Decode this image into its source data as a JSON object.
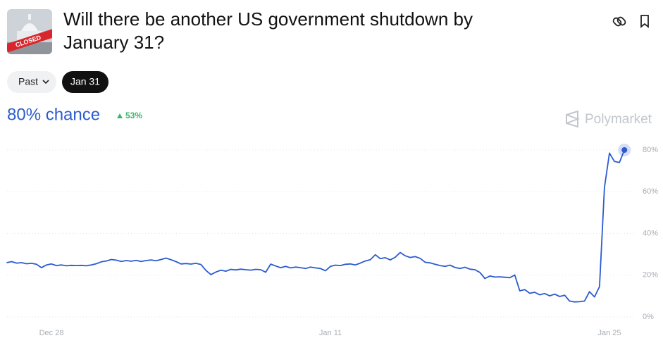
{
  "header": {
    "title_line1": "Will there be another US government shutdown by",
    "title_line2": "January 31?",
    "image_text": "CLOSED"
  },
  "filters": [
    "Past",
    "Jan 31"
  ],
  "summary": {
    "chance": "80% chance",
    "change": "53%",
    "brand": "Polymarket"
  },
  "chart_data": {
    "type": "line",
    "color": "#2b5bd0",
    "grid": true,
    "categories": [
      null,
      null,
      null,
      null,
      null,
      null,
      null,
      null,
      null,
      "Dec 28",
      null,
      null,
      null,
      null,
      null,
      null,
      null,
      null,
      null,
      null,
      null,
      null,
      null,
      null,
      null,
      null,
      null,
      null,
      null,
      null,
      null,
      null,
      null,
      null,
      null,
      null,
      null,
      null,
      null,
      null,
      null,
      null,
      null,
      null,
      null,
      null,
      null,
      null,
      null,
      null,
      null,
      null,
      null,
      null,
      null,
      null,
      null,
      null,
      null,
      null,
      null,
      null,
      null,
      null,
      null,
      "Jan 11",
      null,
      null,
      null,
      null,
      null,
      null,
      null,
      null,
      null,
      null,
      null,
      null,
      null,
      null,
      null,
      null,
      null,
      null,
      null,
      null,
      null,
      null,
      null,
      null,
      null,
      null,
      null,
      null,
      null,
      null,
      null,
      null,
      null,
      null,
      null,
      null,
      null,
      null,
      null,
      null,
      null,
      null,
      null,
      null,
      null,
      null,
      null,
      null,
      null,
      null,
      null,
      null,
      null,
      null,
      null,
      "Jan 25",
      null,
      null,
      null
    ],
    "values": [
      26,
      26.5,
      25.8,
      26,
      25.5,
      25.7,
      25.2,
      23.6,
      24.9,
      25.4,
      24.6,
      24.9,
      24.5,
      24.7,
      24.6,
      24.7,
      24.5,
      24.9,
      25.5,
      26.4,
      26.8,
      27.5,
      27.2,
      26.6,
      27,
      26.7,
      27.1,
      26.6,
      27,
      27.3,
      26.9,
      27.5,
      28.2,
      27.4,
      26.5,
      25.4,
      25.6,
      25.3,
      25.7,
      25.1,
      22.3,
      20.3,
      21.5,
      22.4,
      21.9,
      22.8,
      22.5,
      22.9,
      22.6,
      22.4,
      22.8,
      22.6,
      21.4,
      25.3,
      24.4,
      23.6,
      24.2,
      23.5,
      23.9,
      23.6,
      23.2,
      23.9,
      23.5,
      23.2,
      22.1,
      24.2,
      24.8,
      24.6,
      25.2,
      25.4,
      24.9,
      25.8,
      26.8,
      27.4,
      29.8,
      27.9,
      28.4,
      27.3,
      28.6,
      30.9,
      29.3,
      28.5,
      28.9,
      28.1,
      26.2,
      25.9,
      25.2,
      24.6,
      24.2,
      24.8,
      23.7,
      23.2,
      23.8,
      22.9,
      22.6,
      21.3,
      18.4,
      19.6,
      19.1,
      19.2,
      19,
      18.8,
      20.1,
      12.5,
      13.1,
      11.3,
      11.8,
      10.6,
      11.2,
      10.1,
      10.9,
      9.8,
      10.4,
      7.6,
      7.2,
      7.3,
      7.6,
      12.1,
      9.6,
      14.5,
      62,
      78.5,
      74.5,
      74,
      80
    ],
    "ylim": [
      0,
      80
    ],
    "yticks": [
      {
        "value": 0,
        "label": "0%"
      },
      {
        "value": 20,
        "label": "20%"
      },
      {
        "value": 40,
        "label": "40%"
      },
      {
        "value": 60,
        "label": "60%"
      },
      {
        "value": 80,
        "label": "80%"
      }
    ]
  }
}
